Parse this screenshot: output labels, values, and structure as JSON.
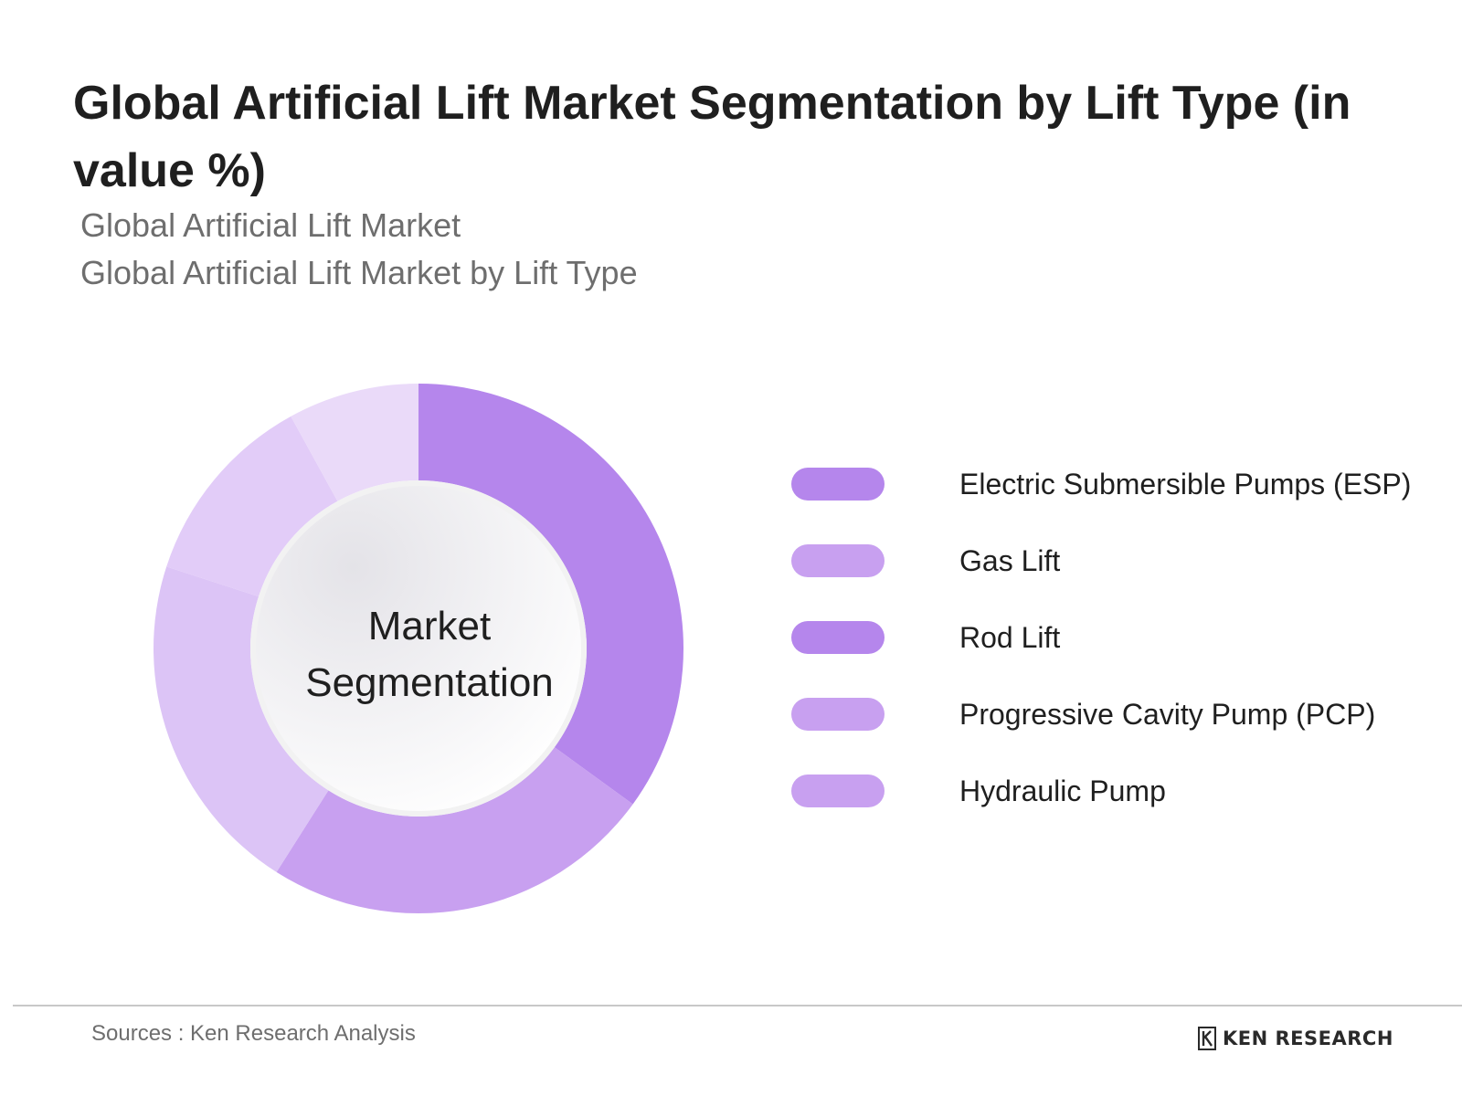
{
  "header": {
    "title": "Global Artificial Lift Market Segmentation by Lift Type (in value %)",
    "subtitle_1": "Global Artificial Lift Market",
    "subtitle_2": "Global Artificial Lift Market by Lift Type"
  },
  "chart_data": {
    "type": "pie",
    "center_label": "Market Segmentation",
    "categories": [
      "Electric Submersible Pumps (ESP)",
      "Gas Lift",
      "Rod Lift",
      "Progressive Cavity Pump (PCP)",
      "Hydraulic Pump"
    ],
    "values": [
      35,
      24,
      21,
      12,
      8
    ],
    "colors": [
      "#b586ec",
      "#c8a0f0",
      "#dcc4f6",
      "#e2ccf8",
      "#eadaf9"
    ],
    "legend": {
      "position": "right",
      "items": [
        {
          "label": "Electric Submersible Pumps (ESP)",
          "color": "#b586ec"
        },
        {
          "label": "Gas Lift",
          "color": "#c8a0f0"
        },
        {
          "label": "Rod Lift",
          "color": "#b586ec"
        },
        {
          "label": "Progressive Cavity Pump (PCP)",
          "color": "#c8a0f0"
        },
        {
          "label": "Hydraulic Pump",
          "color": "#c8a0f0"
        }
      ]
    }
  },
  "footer": {
    "source": "Sources : Ken Research Analysis",
    "brand": "KEN RESEARCH",
    "brand_icon": "ken-research-logo-icon"
  }
}
